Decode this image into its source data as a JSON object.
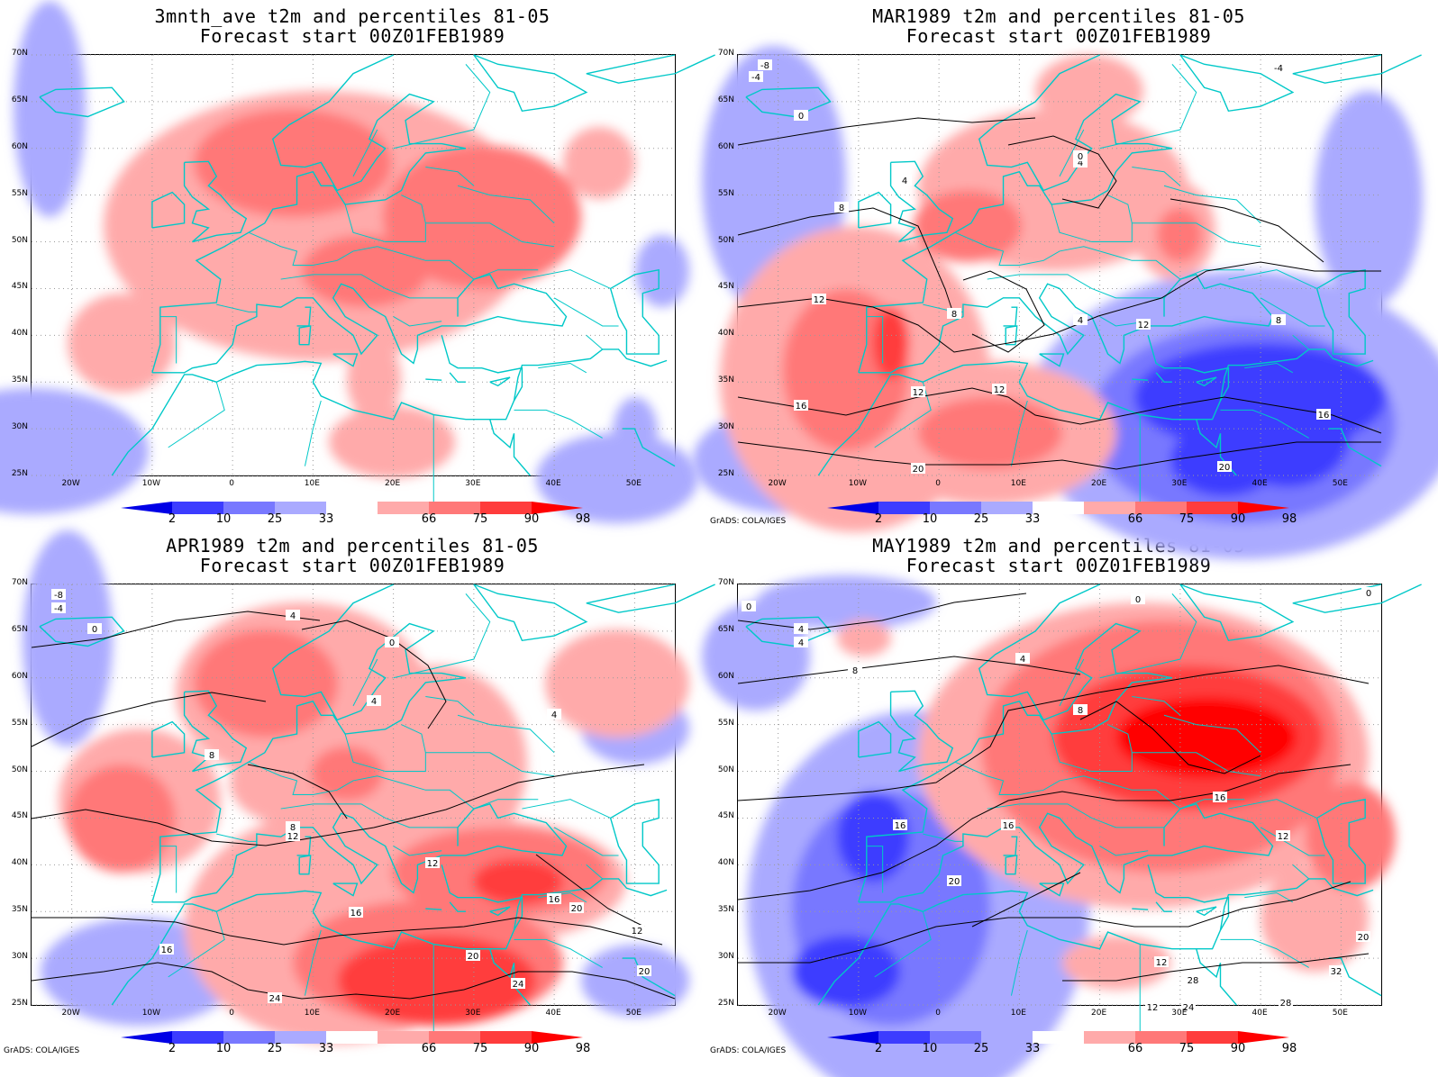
{
  "legend": {
    "labels": [
      "2",
      "10",
      "25",
      "33",
      "66",
      "75",
      "90",
      "98"
    ],
    "colors": {
      "lt2": "#0000e6",
      "p2_10": "#3c3cff",
      "p10_25": "#7878ff",
      "p25_33": "#aaaaff",
      "p66_75": "#ffaaaa",
      "p75_90": "#ff7878",
      "p90_98": "#ff3c3c",
      "gt98": "#ff0000"
    }
  },
  "axes": {
    "lat_labels": [
      "70N",
      "65N",
      "60N",
      "55N",
      "50N",
      "45N",
      "40N",
      "35N",
      "30N",
      "25N"
    ],
    "lon_labels": [
      "20W",
      "10W",
      "0",
      "10E",
      "20E",
      "30E",
      "40E",
      "50E"
    ]
  },
  "credit": "GrADS: COLA/IGES",
  "colors": {
    "coast": "#00c8c8",
    "contour": "#000000",
    "grid": "#9a9a9a"
  },
  "panels": [
    {
      "id": "ave",
      "title_line1": "3mnth_ave t2m and percentiles 81-05",
      "title_line2": "Forecast start 00Z01FEB1989",
      "show_credit": false,
      "contour_labels": []
    },
    {
      "id": "mar",
      "title_line1": "MAR1989 t2m and percentiles 81-05",
      "title_line2": "Forecast start 00Z01FEB1989",
      "show_credit": true,
      "contour_labels": [
        "-8",
        "-4",
        "0",
        "4",
        "8",
        "12",
        "16",
        "20",
        "12",
        "12",
        "12",
        "8",
        "4",
        "0",
        "-4",
        "4",
        "8",
        "16",
        "20"
      ]
    },
    {
      "id": "apr",
      "title_line1": "APR1989 t2m and percentiles 81-05",
      "title_line2": "Forecast start 00Z01FEB1989",
      "show_credit": true,
      "contour_labels": [
        "-8",
        "-4",
        "0",
        "4",
        "4",
        "0",
        "4",
        "8",
        "8",
        "12",
        "12",
        "16",
        "16",
        "20",
        "20",
        "24",
        "24",
        "20",
        "12",
        "16"
      ]
    },
    {
      "id": "may",
      "title_line1": "MAY1989 t2m and percentiles 81-05",
      "title_line2": "Forecast start 00Z01FEB1989",
      "show_credit": true,
      "contour_labels": [
        "0",
        "0",
        "4",
        "4",
        "8",
        "8",
        "12",
        "12",
        "16",
        "16",
        "20",
        "24",
        "28",
        "32",
        "28",
        "12",
        "16",
        "4",
        "0",
        "20"
      ]
    }
  ]
}
